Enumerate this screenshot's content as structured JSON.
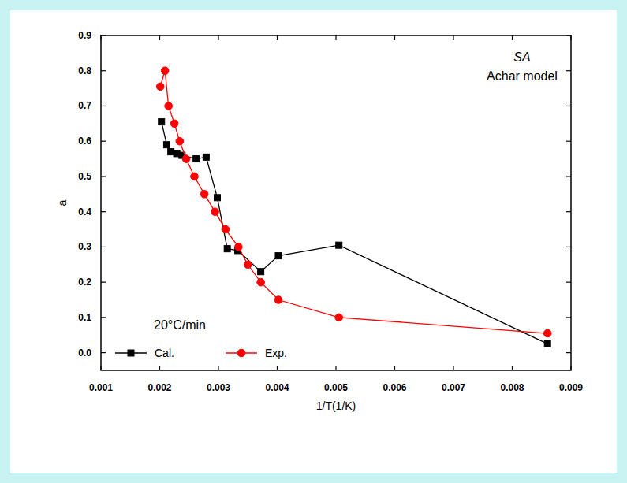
{
  "chart_data": {
    "type": "line",
    "x_label": "1/T(1/K)",
    "y_label": "a",
    "annotations": [
      "SA",
      "Achar model",
      "20°C/min"
    ],
    "xlim": [
      0.001,
      0.009
    ],
    "xticks": [
      0.001,
      0.002,
      0.003,
      0.004,
      0.005,
      0.006,
      0.007,
      0.008,
      0.009
    ],
    "ylim": [
      -0.05,
      0.9
    ],
    "yticks": [
      {
        "value": 0,
        "label": "0.0"
      },
      0.1,
      0.2,
      0.3,
      0.4,
      0.5,
      0.6,
      0.7,
      0.8,
      0.9
    ],
    "grid": false,
    "legend": "lower left",
    "series": [
      {
        "name": "Cal.",
        "color": "#000000",
        "marker": "square",
        "line_style": "solid",
        "x": [
          0.00203,
          0.00212,
          0.00219,
          0.00229,
          0.00238,
          0.00262,
          0.00279,
          0.00298,
          0.00315,
          0.00333,
          0.00372,
          0.00402,
          0.00505,
          0.0086
        ],
        "values": [
          0.655,
          0.59,
          0.57,
          0.565,
          0.56,
          0.55,
          0.555,
          0.44,
          0.295,
          0.29,
          0.23,
          0.275,
          0.305,
          0.025
        ]
      },
      {
        "name": "Exp.",
        "color": "#ff0000",
        "marker": "circle",
        "line_style": "solid",
        "x": [
          0.00201,
          0.00209,
          0.00215,
          0.00225,
          0.00234,
          0.00245,
          0.00259,
          0.00276,
          0.00294,
          0.00312,
          0.00334,
          0.0035,
          0.00372,
          0.00402,
          0.00505,
          0.0086
        ],
        "values": [
          0.755,
          0.8,
          0.7,
          0.65,
          0.6,
          0.55,
          0.5,
          0.45,
          0.4,
          0.35,
          0.3,
          0.25,
          0.2,
          0.15,
          0.1,
          0.055
        ]
      }
    ]
  }
}
